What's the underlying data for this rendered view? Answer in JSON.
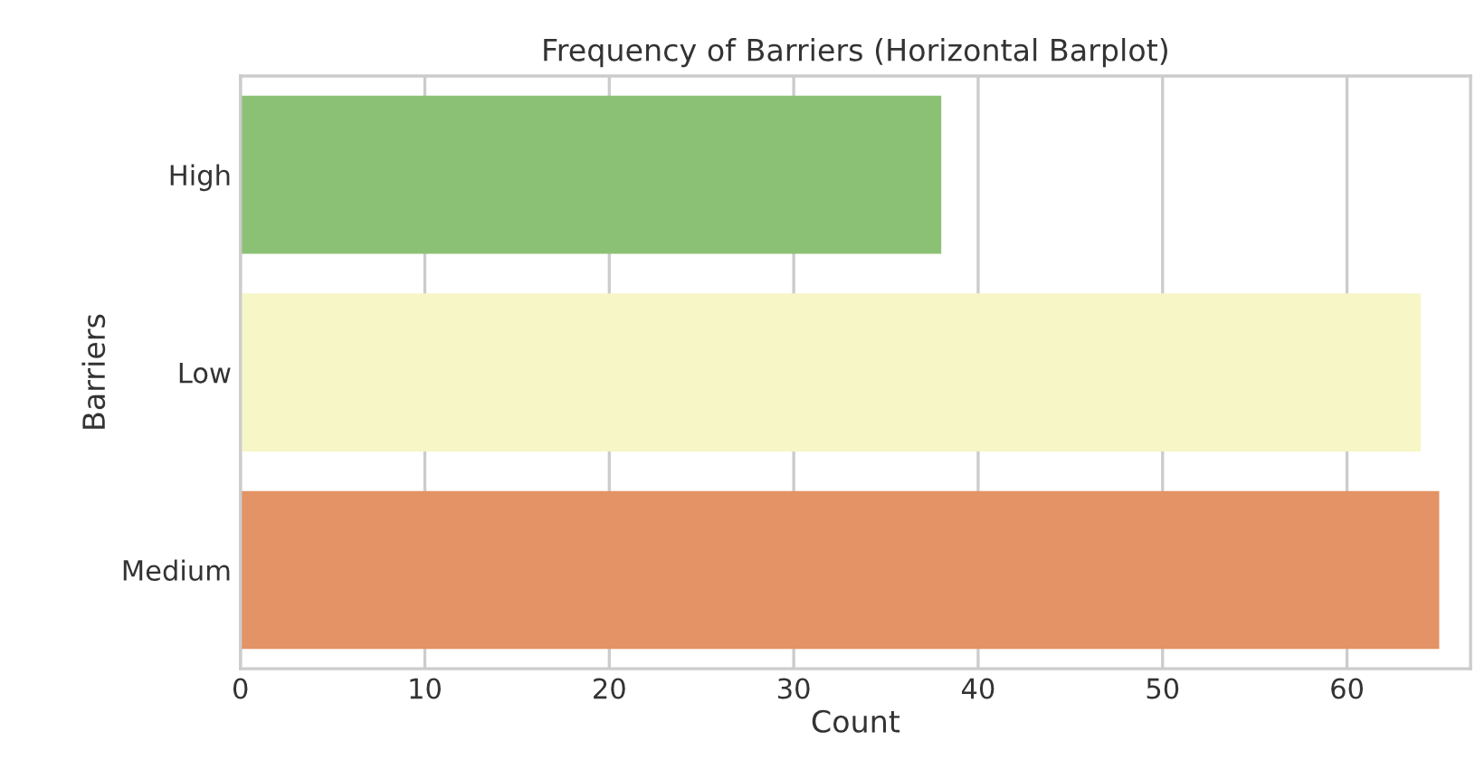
{
  "chart_data": {
    "type": "bar",
    "orientation": "horizontal",
    "title": "Frequency of Barriers (Horizontal Barplot)",
    "xlabel": "Count",
    "ylabel": "Barriers",
    "categories": [
      "High",
      "Low",
      "Medium"
    ],
    "values": [
      38,
      64,
      65
    ],
    "colors": [
      "#8bc174",
      "#f7f6c6",
      "#e39366"
    ],
    "xlim": [
      0,
      66.7
    ],
    "xticks": [
      0,
      10,
      20,
      30,
      40,
      50,
      60
    ],
    "grid": "x"
  }
}
